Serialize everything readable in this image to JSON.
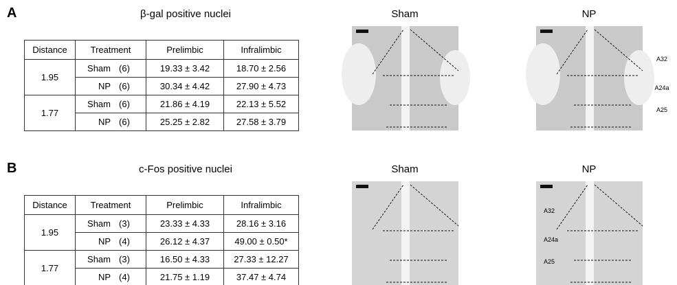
{
  "panels": [
    {
      "label": "A",
      "title": "β-gal positive nuclei",
      "table": {
        "header": [
          "Distance",
          "Treatment",
          "Prelimbic",
          "Infralimbic"
        ],
        "groups": [
          {
            "distance": "1.95",
            "rows": [
              [
                "Sham",
                "(6)",
                "19.33 ± 3.42",
                "18.70 ± 2.56"
              ],
              [
                "NP",
                "(6)",
                "30.34 ± 4.42",
                "27.90 ± 4.73"
              ]
            ]
          },
          {
            "distance": "1.77",
            "rows": [
              [
                "Sham",
                "(6)",
                "21.86 ± 4.19",
                "22.13 ± 5.52"
              ],
              [
                "NP",
                "(6)",
                "25.25 ± 2.82",
                "27.58 ± 3.79"
              ]
            ]
          }
        ]
      },
      "images": [
        {
          "title": "Sham"
        },
        {
          "title": "NP",
          "regions": [
            "A32",
            "A24a",
            "A25"
          ]
        }
      ]
    },
    {
      "label": "B",
      "title": "c-Fos positive nuclei",
      "table": {
        "header": [
          "Distance",
          "Treatment",
          "Prelimbic",
          "Infralimbic"
        ],
        "groups": [
          {
            "distance": "1.95",
            "rows": [
              [
                "Sham",
                "(3)",
                "23.33 ± 4.33",
                "28.16 ± 3.16"
              ],
              [
                "NP",
                "(4)",
                "26.12 ± 4.37",
                "49.00 ± 0.50*"
              ]
            ]
          },
          {
            "distance": "1.77",
            "rows": [
              [
                "Sham",
                "(3)",
                "16.50 ± 4.33",
                "27.33 ± 12.27"
              ],
              [
                "NP",
                "(4)",
                "21.75 ± 1.19",
                "37.47 ± 4.74"
              ]
            ]
          }
        ]
      },
      "images": [
        {
          "title": "Sham"
        },
        {
          "title": "NP",
          "regions": [
            "A32",
            "A24a",
            "A25"
          ]
        }
      ]
    }
  ]
}
